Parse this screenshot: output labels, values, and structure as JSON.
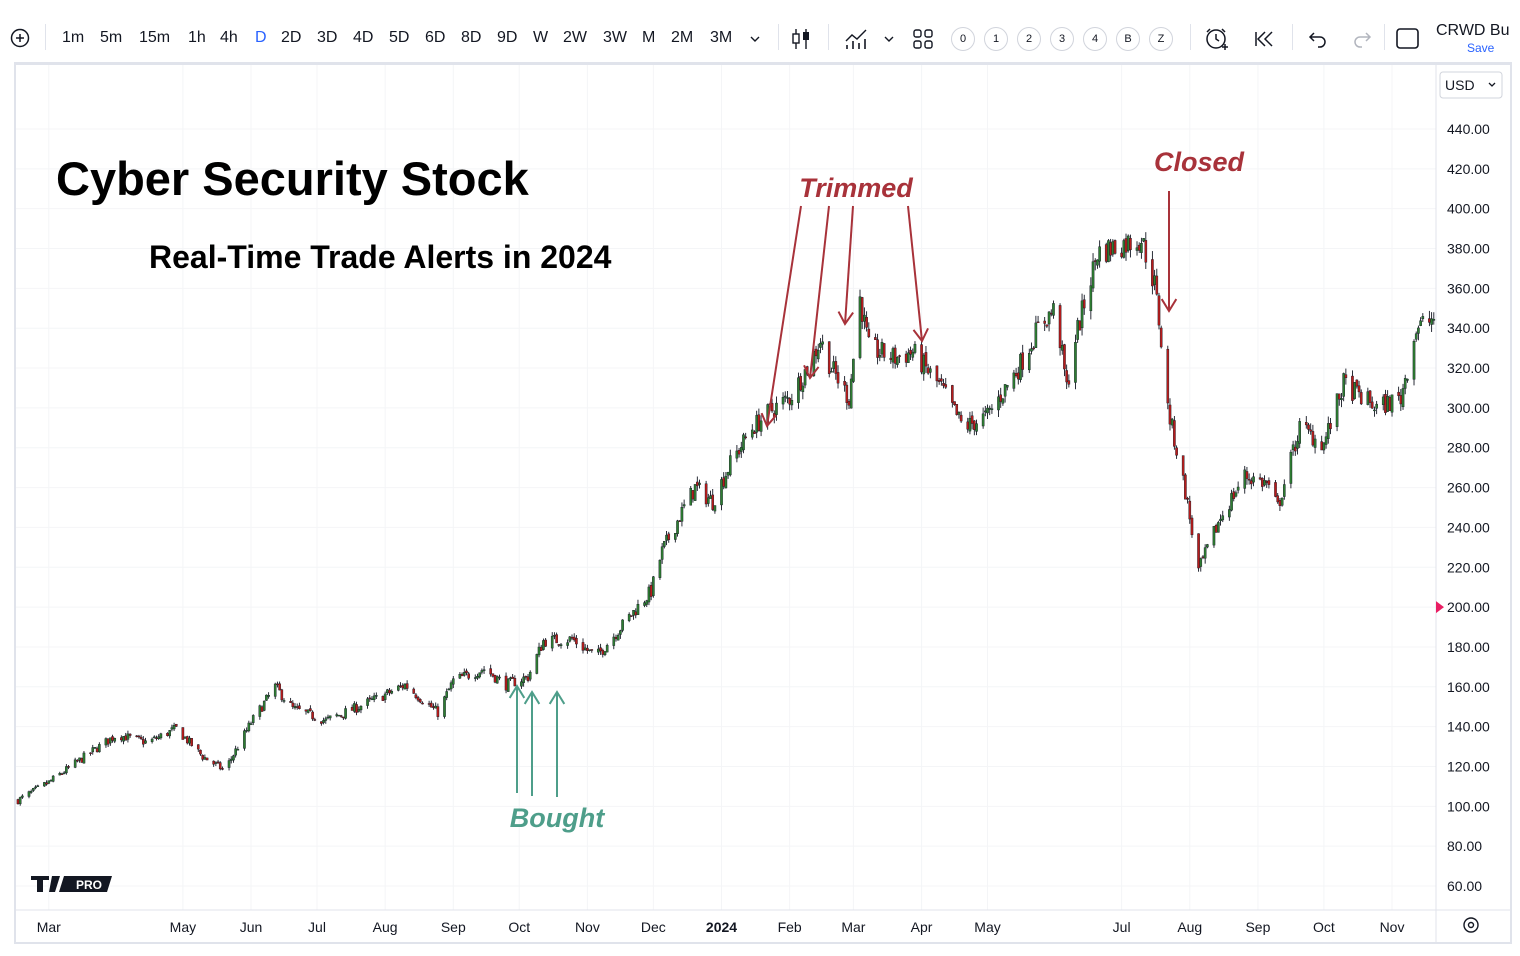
{
  "toolbar": {
    "intervals": [
      "1m",
      "5m",
      "15m",
      "1h",
      "4h",
      "D",
      "2D",
      "3D",
      "4D",
      "5D",
      "6D",
      "8D",
      "9D",
      "W",
      "2W",
      "3W",
      "M",
      "2M",
      "3M"
    ],
    "active_interval": "D",
    "layout_slots": [
      "0",
      "1",
      "2",
      "3",
      "4",
      "B",
      "Z"
    ],
    "symbol": "CRWD Bu",
    "save_label": "Save"
  },
  "currency": "USD",
  "chart_data": {
    "type": "candlestick",
    "title": "Cyber Security Stock",
    "subtitle": "Real-Time Trade Alerts in 2024",
    "ylim": [
      50,
      480
    ],
    "y_ticks": [
      "440.00",
      "420.00",
      "400.00",
      "380.00",
      "360.00",
      "340.00",
      "320.00",
      "300.00",
      "280.00",
      "260.00",
      "240.00",
      "220.00",
      "200.00",
      "180.00",
      "160.00",
      "140.00",
      "120.00",
      "100.00",
      "80.00",
      "60.00"
    ],
    "x_ticks": [
      "Mar",
      "May",
      "Jun",
      "Jul",
      "Aug",
      "Sep",
      "Oct",
      "Nov",
      "Dec",
      "2024",
      "Feb",
      "Mar",
      "Apr",
      "May",
      "Jul",
      "Aug",
      "Sep",
      "Oct",
      "Nov"
    ],
    "price_marker": 200,
    "price_path": [
      [
        "2023-02-15",
        103
      ],
      [
        "2023-03-01",
        112
      ],
      [
        "2023-03-20",
        127
      ],
      [
        "2023-04-01",
        136
      ],
      [
        "2023-04-15",
        132
      ],
      [
        "2023-04-28",
        139
      ],
      [
        "2023-05-10",
        125
      ],
      [
        "2023-05-20",
        118
      ],
      [
        "2023-06-01",
        142
      ],
      [
        "2023-06-12",
        160
      ],
      [
        "2023-06-20",
        149
      ],
      [
        "2023-07-05",
        143
      ],
      [
        "2023-07-20",
        150
      ],
      [
        "2023-08-01",
        156
      ],
      [
        "2023-08-10",
        161
      ],
      [
        "2023-08-25",
        147
      ],
      [
        "2023-09-01",
        163
      ],
      [
        "2023-09-15",
        169
      ],
      [
        "2023-09-25",
        161
      ],
      [
        "2023-10-05",
        165
      ],
      [
        "2023-10-12",
        183
      ],
      [
        "2023-10-25",
        184
      ],
      [
        "2023-11-05",
        175
      ],
      [
        "2023-11-20",
        195
      ],
      [
        "2023-11-30",
        208
      ],
      [
        "2023-12-05",
        228
      ],
      [
        "2023-12-15",
        250
      ],
      [
        "2023-12-20",
        260
      ],
      [
        "2023-12-28",
        253
      ],
      [
        "2024-01-05",
        272
      ],
      [
        "2024-01-15",
        290
      ],
      [
        "2024-01-25",
        300
      ],
      [
        "2024-02-01",
        305
      ],
      [
        "2024-02-10",
        322
      ],
      [
        "2024-02-15",
        334
      ],
      [
        "2024-02-20",
        320
      ],
      [
        "2024-02-28",
        305
      ],
      [
        "2024-03-04",
        355
      ],
      [
        "2024-03-08",
        330
      ],
      [
        "2024-03-20",
        325
      ],
      [
        "2024-03-28",
        328
      ],
      [
        "2024-04-10",
        310
      ],
      [
        "2024-04-20",
        290
      ],
      [
        "2024-05-01",
        296
      ],
      [
        "2024-05-15",
        320
      ],
      [
        "2024-05-25",
        342
      ],
      [
        "2024-06-01",
        350
      ],
      [
        "2024-06-06",
        310
      ],
      [
        "2024-06-10",
        335
      ],
      [
        "2024-06-20",
        378
      ],
      [
        "2024-07-01",
        382
      ],
      [
        "2024-07-10",
        385
      ],
      [
        "2024-07-16",
        362
      ],
      [
        "2024-07-18",
        344
      ],
      [
        "2024-07-22",
        300
      ],
      [
        "2024-07-30",
        258
      ],
      [
        "2024-08-05",
        218
      ],
      [
        "2024-08-15",
        245
      ],
      [
        "2024-08-26",
        266
      ],
      [
        "2024-09-05",
        262
      ],
      [
        "2024-09-10",
        250
      ],
      [
        "2024-09-20",
        290
      ],
      [
        "2024-10-01",
        282
      ],
      [
        "2024-10-10",
        312
      ],
      [
        "2024-10-25",
        300
      ],
      [
        "2024-11-05",
        305
      ],
      [
        "2024-11-12",
        340
      ],
      [
        "2024-11-20",
        345
      ]
    ],
    "annotations": [
      {
        "label": "Bought",
        "color": "#4e9e8a"
      },
      {
        "label": "Trimmed",
        "color": "#a8323a"
      },
      {
        "label": "Closed",
        "color": "#a8323a"
      }
    ],
    "logo": "PRO",
    "up_color": "#2e7d32",
    "down_color": "#b71c1c"
  }
}
